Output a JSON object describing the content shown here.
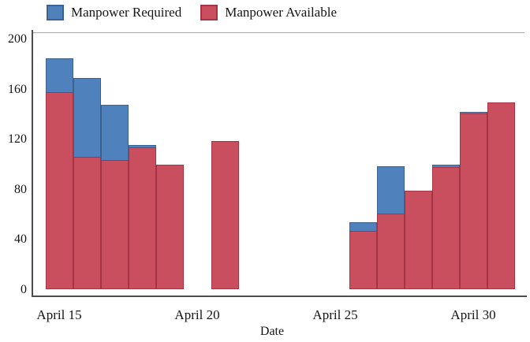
{
  "legend": {
    "items": [
      {
        "label": "Manpower Required",
        "swatch_fill": "#4f81bd",
        "swatch_border": "#3b6291"
      },
      {
        "label": "Manpower Available",
        "swatch_fill": "#c94e5e",
        "swatch_border": "#a53343"
      }
    ]
  },
  "chart_data": {
    "type": "bar",
    "title": "",
    "xlabel": "Date",
    "ylabel": "",
    "ylim": [
      0,
      200
    ],
    "y_ticks": [
      0,
      40,
      80,
      120,
      160,
      200
    ],
    "x_ticks": [
      {
        "label": "April 15",
        "day": 15
      },
      {
        "label": "April 20",
        "day": 20
      },
      {
        "label": "April 25",
        "day": 25
      },
      {
        "label": "April 30",
        "day": 30
      }
    ],
    "grid": false,
    "legend_position": "top",
    "overlap_style": "both series share the zero baseline; Available is drawn in front of Required",
    "x_unit": "day (continuous; day 31 = May 1)",
    "series": [
      {
        "name": "Manpower Required",
        "key": "required",
        "color": "#4f81bd",
        "border_color": "#3b6291",
        "data": [
          {
            "day": 15,
            "value": 185
          },
          {
            "day": 16,
            "value": 169
          },
          {
            "day": 17,
            "value": 148
          },
          {
            "day": 18,
            "value": 116
          },
          {
            "day": 26,
            "value": 54
          },
          {
            "day": 27,
            "value": 99
          },
          {
            "day": 29,
            "value": 100
          },
          {
            "day": 30,
            "value": 142
          }
        ]
      },
      {
        "name": "Manpower Available",
        "key": "available",
        "color": "#c94e5e",
        "border_color": "#a53343",
        "data": [
          {
            "day": 15,
            "value": 158
          },
          {
            "day": 16,
            "value": 106
          },
          {
            "day": 17,
            "value": 104
          },
          {
            "day": 18,
            "value": 114
          },
          {
            "day": 19,
            "value": 100
          },
          {
            "day": 21,
            "value": 119
          },
          {
            "day": 26,
            "value": 47
          },
          {
            "day": 27,
            "value": 61
          },
          {
            "day": 28,
            "value": 79
          },
          {
            "day": 29,
            "value": 98
          },
          {
            "day": 30,
            "value": 141
          },
          {
            "day": 31,
            "value": 150
          }
        ]
      }
    ]
  }
}
